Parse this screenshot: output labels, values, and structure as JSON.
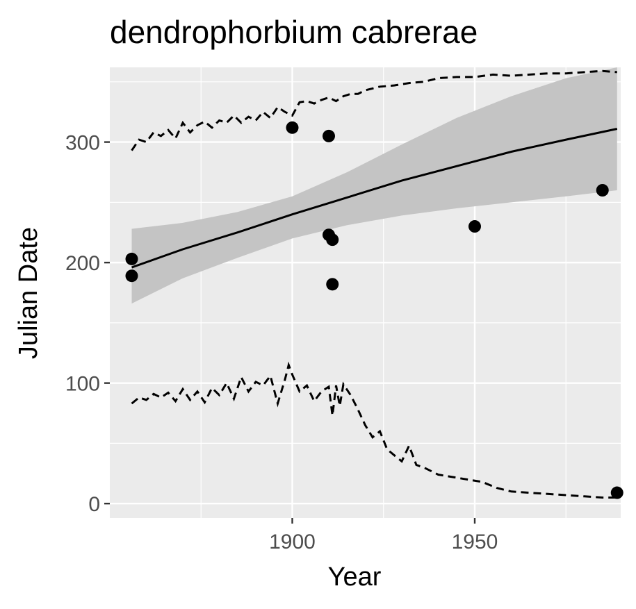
{
  "chart_data": {
    "type": "scatter",
    "title": "dendrophorbium cabrerae",
    "xlabel": "Year",
    "ylabel": "Julian Date",
    "xlim": [
      1850,
      1990
    ],
    "ylim": [
      -12,
      362
    ],
    "x_ticks": [
      1900,
      1950
    ],
    "y_ticks": [
      0,
      100,
      200,
      300
    ],
    "grid": true,
    "legend": "none",
    "colors": {
      "panel": "#ebebeb",
      "grid": "#ffffff",
      "points": "#000000",
      "band": "#c4c4c4",
      "line": "#000000"
    },
    "points": {
      "x": [
        1856,
        1856,
        1900,
        1910,
        1910,
        1911,
        1911,
        1950,
        1985,
        1989
      ],
      "y": [
        203,
        189,
        312,
        305,
        223,
        219,
        182,
        230,
        260,
        9
      ]
    },
    "fit_line": {
      "x": [
        1856,
        1870,
        1885,
        1900,
        1915,
        1930,
        1945,
        1960,
        1975,
        1989
      ],
      "y": [
        196,
        211,
        225,
        240,
        254,
        268,
        280,
        292,
        302,
        311
      ]
    },
    "confidence_band": {
      "x": [
        1856,
        1870,
        1885,
        1900,
        1915,
        1930,
        1945,
        1960,
        1975,
        1989
      ],
      "upper": [
        228,
        233,
        242,
        255,
        275,
        298,
        320,
        338,
        353,
        362
      ],
      "lower": [
        166,
        187,
        204,
        220,
        231,
        239,
        245,
        250,
        255,
        260
      ]
    },
    "upper_dashed": {
      "x": [
        1856,
        1858,
        1860,
        1862,
        1864,
        1866,
        1868,
        1870,
        1872,
        1874,
        1876,
        1878,
        1880,
        1882,
        1884,
        1886,
        1888,
        1890,
        1892,
        1894,
        1896,
        1898,
        1900,
        1902,
        1904,
        1906,
        1908,
        1910,
        1912,
        1914,
        1916,
        1918,
        1920,
        1924,
        1928,
        1932,
        1936,
        1940,
        1945,
        1950,
        1955,
        1960,
        1965,
        1970,
        1975,
        1980,
        1985,
        1989
      ],
      "y": [
        293,
        302,
        300,
        308,
        305,
        310,
        303,
        316,
        308,
        314,
        317,
        312,
        318,
        316,
        322,
        316,
        321,
        318,
        325,
        320,
        329,
        325,
        322,
        333,
        334,
        332,
        335,
        337,
        334,
        338,
        340,
        340,
        343,
        346,
        347,
        349,
        350,
        353,
        354,
        354,
        356,
        355,
        356,
        357,
        357,
        358,
        359,
        358
      ]
    },
    "lower_dashed": {
      "x": [
        1856,
        1858,
        1860,
        1862,
        1864,
        1866,
        1868,
        1870,
        1872,
        1874,
        1876,
        1878,
        1880,
        1882,
        1884,
        1886,
        1888,
        1890,
        1892,
        1894,
        1896,
        1898,
        1899,
        1900,
        1902,
        1904,
        1906,
        1908,
        1910,
        1911,
        1912,
        1913,
        1914,
        1916,
        1918,
        1920,
        1922,
        1924,
        1926,
        1928,
        1930,
        1932,
        1934,
        1936,
        1940,
        1944,
        1948,
        1952,
        1956,
        1960,
        1965,
        1970,
        1975,
        1980,
        1985,
        1989
      ],
      "y": [
        83,
        88,
        86,
        91,
        88,
        92,
        85,
        95,
        86,
        93,
        84,
        96,
        90,
        100,
        87,
        105,
        93,
        101,
        98,
        106,
        83,
        103,
        115,
        107,
        93,
        98,
        85,
        93,
        97,
        73,
        98,
        81,
        99,
        90,
        78,
        65,
        55,
        60,
        45,
        40,
        35,
        48,
        32,
        30,
        24,
        22,
        20,
        18,
        13,
        10,
        9,
        8,
        7,
        6,
        5,
        5
      ]
    }
  }
}
